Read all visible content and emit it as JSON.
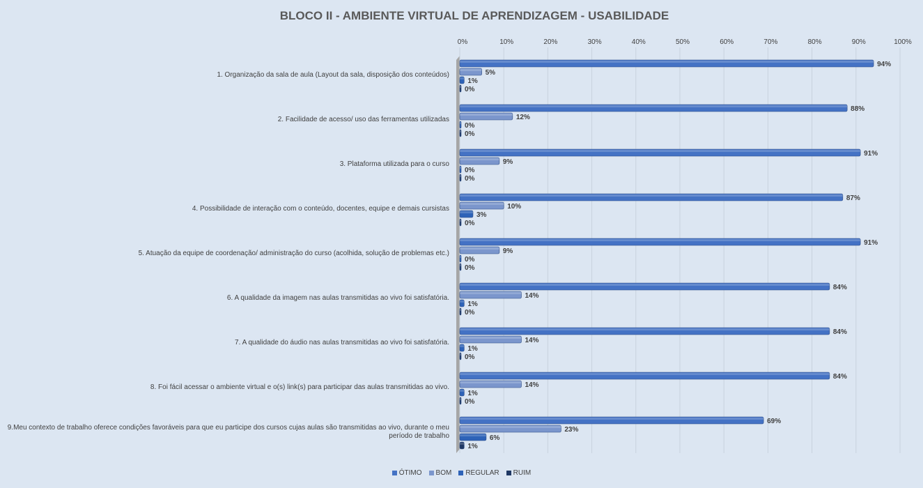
{
  "chart_data": {
    "type": "bar",
    "title": "BLOCO II - AMBIENTE VIRTUAL DE APRENDIZAGEM - USABILIDADE",
    "orientation": "horizontal",
    "xlim": [
      0,
      100
    ],
    "ticks": [
      "0%",
      "10%",
      "20%",
      "30%",
      "40%",
      "50%",
      "60%",
      "70%",
      "80%",
      "90%",
      "100%"
    ],
    "grid": true,
    "legend_position": "bottom",
    "categories": [
      "1. Organização da sala de aula (Layout da sala, disposição dos conteúdos)",
      "2. Facilidade de acesso/ uso das ferramentas utilizadas",
      "3. Plataforma utilizada para o curso",
      "4. Possibilidade de interação com o conteúdo, docentes, equipe e demais cursistas",
      "5. Atuação da equipe de coordenação/ administração do curso (acolhida, solução de problemas etc.)",
      "6. A qualidade da imagem nas aulas transmitidas ao vivo foi satisfatória.",
      "7. A qualidade do áudio nas aulas transmitidas ao vivo foi satisfatória.",
      "8. Foi fácil acessar o ambiente virtual e o(s) link(s) para participar das aulas transmitidas ao vivo.",
      "9.Meu contexto de trabalho oferece condições favoráveis para que eu participe dos cursos cujas aulas são transmitidas ao vivo, durante o meu período de trabalho"
    ],
    "series": [
      {
        "name": "ÓTIMO",
        "color": "#4472c4",
        "values": [
          94,
          88,
          91,
          87,
          91,
          84,
          84,
          84,
          69
        ]
      },
      {
        "name": "BOM",
        "color": "#7b96cc",
        "values": [
          5,
          12,
          9,
          10,
          9,
          14,
          14,
          14,
          23
        ]
      },
      {
        "name": "REGULAR",
        "color": "#2e63b8",
        "values": [
          1,
          0,
          0,
          3,
          0,
          1,
          1,
          1,
          6
        ]
      },
      {
        "name": "RUIM",
        "color": "#1f3864",
        "values": [
          0,
          0,
          0,
          0,
          0,
          0,
          0,
          0,
          1
        ]
      }
    ]
  }
}
